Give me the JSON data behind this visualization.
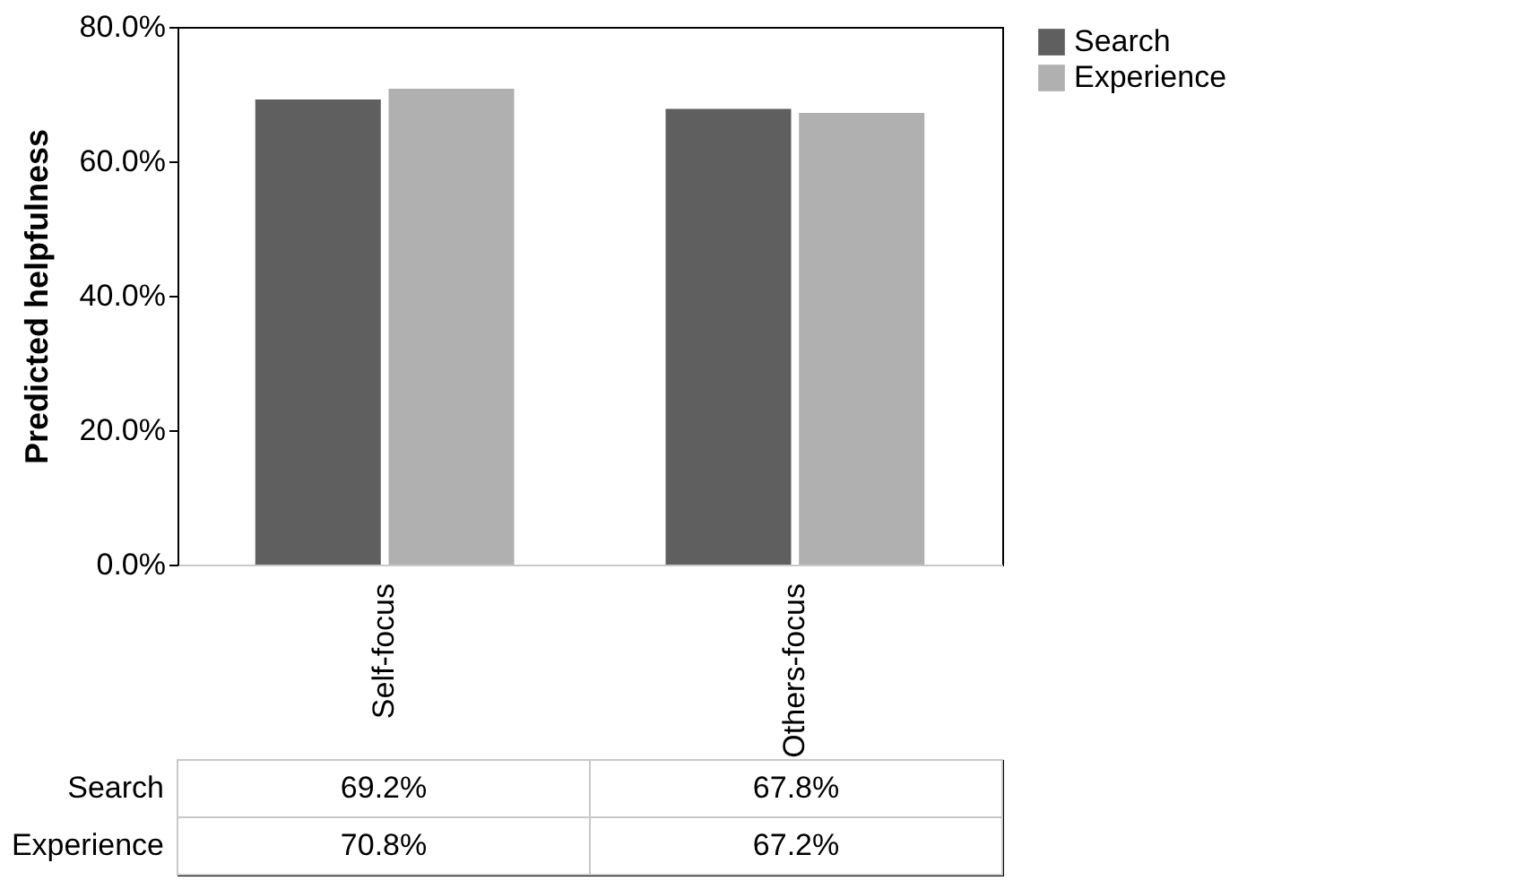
{
  "chart_data": {
    "type": "bar",
    "ylabel": "Predicted helpfulness",
    "categories": [
      "Self-focus",
      "Others-focus"
    ],
    "series": [
      {
        "name": "Search",
        "color": "#5f5f5f",
        "values": [
          69.2,
          67.8
        ],
        "value_labels": [
          "69.2%",
          "67.8%"
        ]
      },
      {
        "name": "Experience",
        "color": "#b0b0b0",
        "values": [
          70.8,
          67.2
        ],
        "value_labels": [
          "70.8%",
          "67.2%"
        ]
      }
    ],
    "ylim": [
      0,
      80
    ],
    "yticks": [
      {
        "value": 0,
        "label": "0.0%"
      },
      {
        "value": 20,
        "label": "20.0%"
      },
      {
        "value": 40,
        "label": "40.0%"
      },
      {
        "value": 60,
        "label": "60.0%"
      },
      {
        "value": 80,
        "label": "80.0%"
      }
    ],
    "grid": false,
    "legend": "right"
  }
}
